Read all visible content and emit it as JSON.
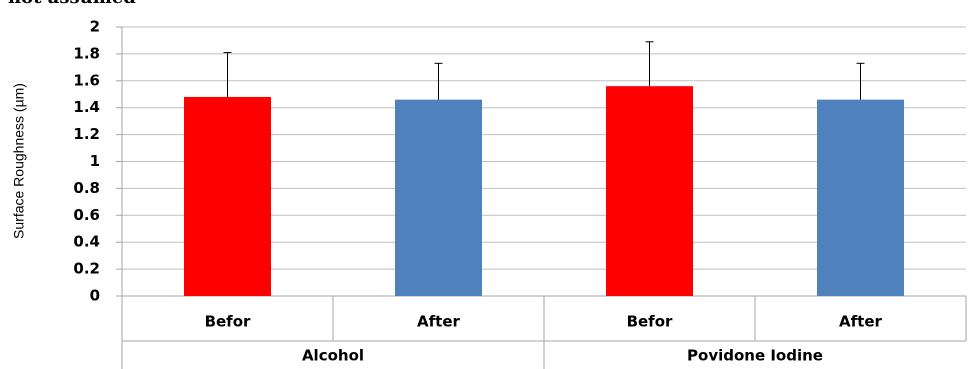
{
  "chart_data": {
    "type": "bar",
    "annotation": "not assumed",
    "y_label": "Surface Roughness (µm)",
    "categories": [
      "Befor",
      "After",
      "Befor",
      "After"
    ],
    "groups": [
      "Alcohol",
      "Povidone Iodine"
    ],
    "values": [
      1.48,
      1.46,
      1.56,
      1.46
    ],
    "errors": [
      0.33,
      0.27,
      0.33,
      0.27
    ],
    "colors": [
      "#ff0000",
      "#4f81bd",
      "#ff0000",
      "#4f81bd"
    ],
    "ylim": [
      0,
      2
    ],
    "yticks": [
      0,
      0.2,
      0.4,
      0.6,
      0.8,
      1,
      1.2,
      1.4,
      1.6,
      1.8,
      2
    ],
    "grid": true
  }
}
